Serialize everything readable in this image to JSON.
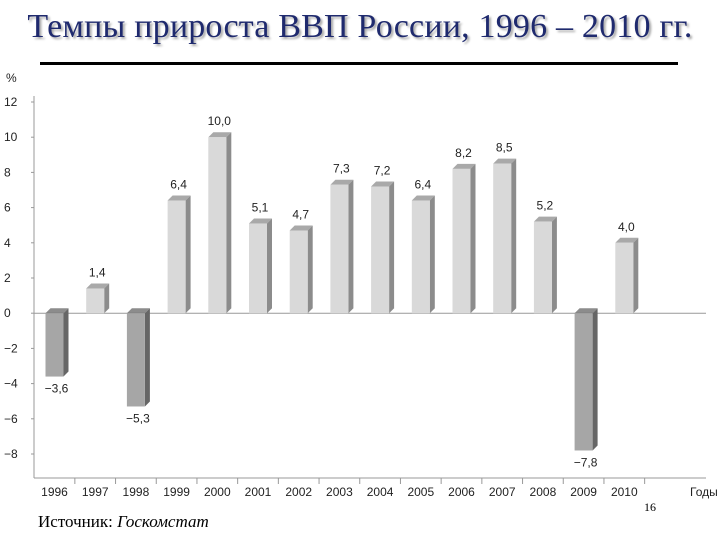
{
  "slide": {
    "title": "Темпы прироста ВВП России, 1996 – 2010 гг.",
    "source_label": "Источник: ",
    "source_value": "Госкомстат",
    "page_number": "16"
  },
  "chart_data": {
    "type": "bar",
    "title": "",
    "ylabel": "%",
    "xlabel": "Годы",
    "ylim": [
      -8,
      12
    ],
    "yticks": [
      12,
      10,
      8,
      6,
      4,
      2,
      0,
      -2,
      -4,
      -6,
      -8
    ],
    "ytick_labels": [
      "12",
      "10",
      "8",
      "6",
      "4",
      "2",
      "0",
      "−2",
      "−4",
      "−6",
      "−8"
    ],
    "grid": false,
    "legend": "none",
    "categories": [
      "1996",
      "1997",
      "1998",
      "1999",
      "2000",
      "2001",
      "2002",
      "2003",
      "2004",
      "2005",
      "2006",
      "2007",
      "2008",
      "2009",
      "2010"
    ],
    "values": [
      -3.6,
      1.4,
      -5.3,
      6.4,
      10.0,
      5.1,
      4.7,
      7.3,
      7.2,
      6.4,
      8.2,
      8.5,
      5.2,
      -7.8,
      4.0
    ],
    "value_labels": [
      "−3,6",
      "1,4",
      "−5,3",
      "6,4",
      "10,0",
      "5,1",
      "4,7",
      "7,3",
      "7,2",
      "6,4",
      "8,2",
      "8,5",
      "5,2",
      "−7,8",
      "4,0"
    ],
    "colors": {
      "positive_face": "#d9d9d9",
      "positive_side": "#8c8c8c",
      "negative_face": "#a6a6a6",
      "negative_side": "#666666",
      "axis": "#999999"
    }
  }
}
